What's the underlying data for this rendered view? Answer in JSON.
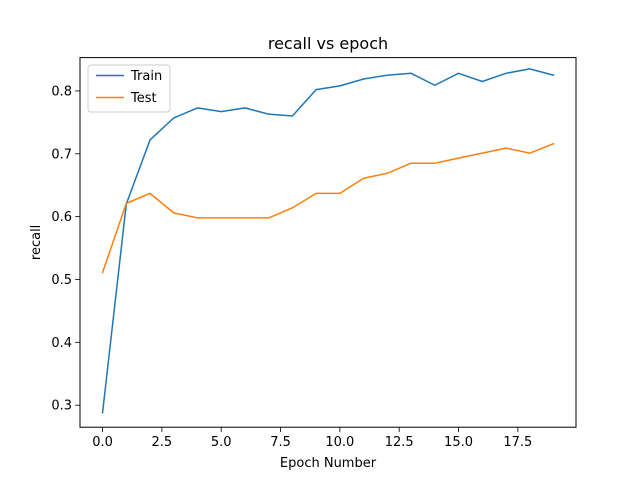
{
  "chart_data": {
    "type": "line",
    "title": "recall vs epoch",
    "xlabel": "Epoch Number",
    "ylabel": "recall",
    "xlim": [
      -0.95,
      19.95
    ],
    "ylim": [
      0.265,
      0.853
    ],
    "xticks": [
      0.0,
      2.5,
      5.0,
      7.5,
      10.0,
      12.5,
      15.0,
      17.5
    ],
    "xtick_labels": [
      "0.0",
      "2.5",
      "5.0",
      "7.5",
      "10.0",
      "12.5",
      "15.0",
      "17.5"
    ],
    "yticks": [
      0.3,
      0.4,
      0.5,
      0.6,
      0.7,
      0.8
    ],
    "ytick_labels": [
      "0.3",
      "0.4",
      "0.5",
      "0.6",
      "0.7",
      "0.8"
    ],
    "grid": false,
    "legend_position": "upper-left",
    "x": [
      0,
      1,
      2,
      3,
      4,
      5,
      6,
      7,
      8,
      9,
      10,
      11,
      12,
      13,
      14,
      15,
      16,
      17,
      18,
      19
    ],
    "series": [
      {
        "name": "Train",
        "color": "#1f77b4",
        "values": [
          0.288,
          0.62,
          0.722,
          0.757,
          0.773,
          0.767,
          0.773,
          0.763,
          0.76,
          0.802,
          0.808,
          0.819,
          0.825,
          0.828,
          0.809,
          0.828,
          0.815,
          0.828,
          0.835,
          0.825
        ]
      },
      {
        "name": "Test",
        "color": "#ff7f0e",
        "values": [
          0.511,
          0.621,
          0.637,
          0.606,
          0.598,
          0.598,
          0.598,
          0.598,
          0.614,
          0.637,
          0.637,
          0.661,
          0.669,
          0.685,
          0.685,
          0.693,
          0.701,
          0.709,
          0.701,
          0.716
        ]
      }
    ]
  }
}
